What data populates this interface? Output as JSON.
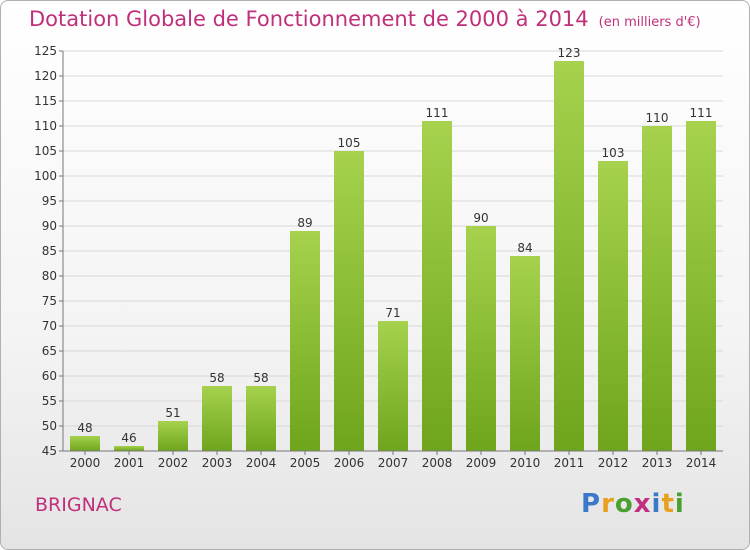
{
  "title": "Dotation Globale de Fonctionnement de 2000 à 2014",
  "unit": "(en milliers d'€)",
  "place": "BRIGNAC",
  "logo": {
    "letters": [
      "P",
      "r",
      "o",
      "x",
      "i",
      "t",
      "i"
    ],
    "colors": [
      "#3a78c8",
      "#e8a020",
      "#4aa030",
      "#c03080",
      "#3a78c8",
      "#e8a020",
      "#4aa030"
    ]
  },
  "colors": {
    "bar_top": "#a6d24e",
    "bar_bottom": "#6ea51c",
    "title": "#c0307a",
    "grid": "#d8d8d8"
  },
  "chart_data": {
    "type": "bar",
    "categories": [
      "2000",
      "2001",
      "2002",
      "2003",
      "2004",
      "2005",
      "2006",
      "2007",
      "2008",
      "2009",
      "2010",
      "2011",
      "2012",
      "2013",
      "2014"
    ],
    "values": [
      48,
      46,
      51,
      58,
      58,
      89,
      105,
      71,
      111,
      90,
      84,
      123,
      103,
      110,
      111
    ],
    "ylim": [
      45,
      125
    ],
    "yticks": [
      45,
      50,
      55,
      60,
      65,
      70,
      75,
      80,
      85,
      90,
      95,
      100,
      105,
      110,
      115,
      120,
      125
    ],
    "grid": true
  }
}
